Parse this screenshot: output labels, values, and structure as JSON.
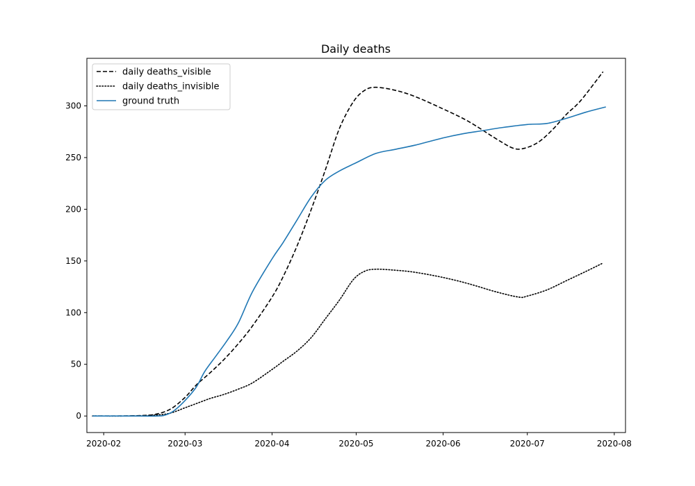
{
  "chart_data": {
    "type": "line",
    "title": "Daily deaths",
    "xlabel": "",
    "ylabel": "",
    "xlim": [
      "2020-01-26",
      "2020-08-05"
    ],
    "ylim": [
      -16,
      346
    ],
    "x_ticks": [
      "2020-02-01",
      "2020-03-01",
      "2020-04-01",
      "2020-05-01",
      "2020-06-01",
      "2020-07-01",
      "2020-08-01"
    ],
    "x_tick_labels": [
      "2020-02",
      "2020-03",
      "2020-04",
      "2020-05",
      "2020-06",
      "2020-07",
      "2020-08"
    ],
    "y_ticks": [
      0,
      50,
      100,
      150,
      200,
      250,
      300
    ],
    "y_tick_labels": [
      "0",
      "50",
      "100",
      "150",
      "200",
      "250",
      "300"
    ],
    "grid": false,
    "legend_position": "top-left",
    "series": [
      {
        "name": "daily deaths_visible",
        "color": "#000000",
        "style": "dashed",
        "points": [
          [
            "2020-01-28",
            0
          ],
          [
            "2020-02-05",
            0
          ],
          [
            "2020-02-15",
            0.5
          ],
          [
            "2020-02-20",
            2
          ],
          [
            "2020-02-25",
            7
          ],
          [
            "2020-03-01",
            18
          ],
          [
            "2020-03-05",
            30
          ],
          [
            "2020-03-10",
            42
          ],
          [
            "2020-03-15",
            55
          ],
          [
            "2020-03-20",
            70
          ],
          [
            "2020-03-25",
            87
          ],
          [
            "2020-04-01",
            115
          ],
          [
            "2020-04-05",
            135
          ],
          [
            "2020-04-10",
            165
          ],
          [
            "2020-04-15",
            200
          ],
          [
            "2020-04-20",
            238
          ],
          [
            "2020-04-25",
            278
          ],
          [
            "2020-04-30",
            304
          ],
          [
            "2020-05-04",
            315
          ],
          [
            "2020-05-08",
            318
          ],
          [
            "2020-05-15",
            315
          ],
          [
            "2020-05-22",
            309
          ],
          [
            "2020-06-01",
            297
          ],
          [
            "2020-06-10",
            285
          ],
          [
            "2020-06-20",
            268
          ],
          [
            "2020-06-26",
            259
          ],
          [
            "2020-06-30",
            259
          ],
          [
            "2020-07-05",
            265
          ],
          [
            "2020-07-10",
            277
          ],
          [
            "2020-07-15",
            292
          ],
          [
            "2020-07-20",
            305
          ],
          [
            "2020-07-28",
            333
          ]
        ]
      },
      {
        "name": "daily deaths_invisible",
        "color": "#000000",
        "style": "dotted",
        "points": [
          [
            "2020-01-28",
            0
          ],
          [
            "2020-02-10",
            0
          ],
          [
            "2020-02-20",
            1
          ],
          [
            "2020-02-25",
            3
          ],
          [
            "2020-03-01",
            8
          ],
          [
            "2020-03-05",
            12
          ],
          [
            "2020-03-10",
            17
          ],
          [
            "2020-03-15",
            21
          ],
          [
            "2020-03-20",
            26
          ],
          [
            "2020-03-25",
            32
          ],
          [
            "2020-04-01",
            45
          ],
          [
            "2020-04-05",
            53
          ],
          [
            "2020-04-10",
            63
          ],
          [
            "2020-04-15",
            76
          ],
          [
            "2020-04-20",
            94
          ],
          [
            "2020-04-25",
            112
          ],
          [
            "2020-04-30",
            132
          ],
          [
            "2020-05-04",
            140
          ],
          [
            "2020-05-08",
            142
          ],
          [
            "2020-05-15",
            141
          ],
          [
            "2020-05-22",
            139
          ],
          [
            "2020-06-01",
            134
          ],
          [
            "2020-06-10",
            128
          ],
          [
            "2020-06-20",
            120
          ],
          [
            "2020-06-28",
            115
          ],
          [
            "2020-07-01",
            116
          ],
          [
            "2020-07-08",
            122
          ],
          [
            "2020-07-15",
            131
          ],
          [
            "2020-07-22",
            140
          ],
          [
            "2020-07-28",
            148
          ]
        ]
      },
      {
        "name": "ground truth",
        "color": "#1f77b4",
        "style": "solid",
        "points": [
          [
            "2020-01-28",
            0
          ],
          [
            "2020-02-10",
            0
          ],
          [
            "2020-02-20",
            0
          ],
          [
            "2020-02-23",
            1
          ],
          [
            "2020-02-26",
            5
          ],
          [
            "2020-03-01",
            15
          ],
          [
            "2020-03-05",
            28
          ],
          [
            "2020-03-08",
            43
          ],
          [
            "2020-03-12",
            58
          ],
          [
            "2020-03-16",
            73
          ],
          [
            "2020-03-20",
            90
          ],
          [
            "2020-03-25",
            120
          ],
          [
            "2020-04-01",
            152
          ],
          [
            "2020-04-05",
            168
          ],
          [
            "2020-04-10",
            190
          ],
          [
            "2020-04-15",
            212
          ],
          [
            "2020-04-20",
            228
          ],
          [
            "2020-04-25",
            237
          ],
          [
            "2020-05-01",
            245
          ],
          [
            "2020-05-08",
            254
          ],
          [
            "2020-05-15",
            258
          ],
          [
            "2020-05-22",
            262
          ],
          [
            "2020-06-01",
            269
          ],
          [
            "2020-06-08",
            273
          ],
          [
            "2020-06-15",
            276
          ],
          [
            "2020-06-22",
            279
          ],
          [
            "2020-07-01",
            282
          ],
          [
            "2020-07-08",
            283
          ],
          [
            "2020-07-15",
            288
          ],
          [
            "2020-07-22",
            294
          ],
          [
            "2020-07-29",
            299
          ]
        ]
      }
    ]
  }
}
